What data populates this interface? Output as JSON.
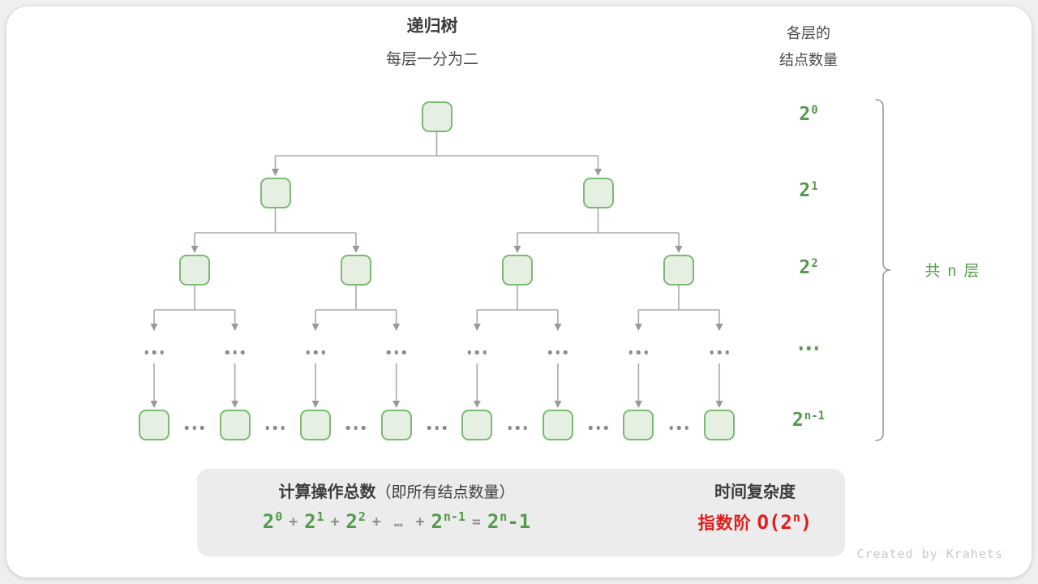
{
  "header": {
    "title": "递归树",
    "subtitle": "每层一分为二",
    "right_title": [
      "各层的",
      "结点数量"
    ]
  },
  "tree": {
    "levels": [
      1,
      2,
      4,
      8
    ],
    "mid_ellipsis_count": 8,
    "bottom_ellipsis_count": 7
  },
  "level_labels": [
    {
      "base": "2",
      "sup": "0"
    },
    {
      "base": "2",
      "sup": "1"
    },
    {
      "base": "2",
      "sup": "2"
    },
    {
      "ellipsis": true
    },
    {
      "base": "2",
      "sup": "n-1"
    }
  ],
  "brace_label": "共 n 层",
  "summary": {
    "title_bold": "计算操作总数",
    "title_paren": "（即所有结点数量）",
    "formula": [
      {
        "base": "2",
        "sup": "0"
      },
      {
        "op": "+"
      },
      {
        "base": "2",
        "sup": "1"
      },
      {
        "op": "+"
      },
      {
        "base": "2",
        "sup": "2"
      },
      {
        "op": "+"
      },
      {
        "op": "…"
      },
      {
        "op": "+"
      },
      {
        "base": "2",
        "sup": "n-1"
      },
      {
        "op": "="
      },
      {
        "base": "2",
        "sup": "n",
        "tail": "-1"
      }
    ],
    "complexity_title": "时间复杂度",
    "complexity": {
      "cjk": "指数阶",
      "base": "O(2",
      "sup": "n",
      "close": ")"
    }
  },
  "watermark": "Created by Krahets",
  "colors": {
    "page_bg": "#efefef",
    "card_bg": "#ffffff",
    "text_dark": "#3c3c3c",
    "text_med": "#4a4a4a",
    "node_fill": "#e6f0e2",
    "node_border": "#7cb973",
    "connector": "#a9a9a9",
    "arrowhead": "#999999",
    "dots": "#8a8a8a",
    "green": "#549a4c",
    "op_gray": "#8f8f8f",
    "red": "#e31c1c",
    "summary_bg": "#ececec",
    "block_arrow": "#c4c4c4",
    "brace": "#9a9a9a",
    "watermark": "#c9c9c9"
  }
}
